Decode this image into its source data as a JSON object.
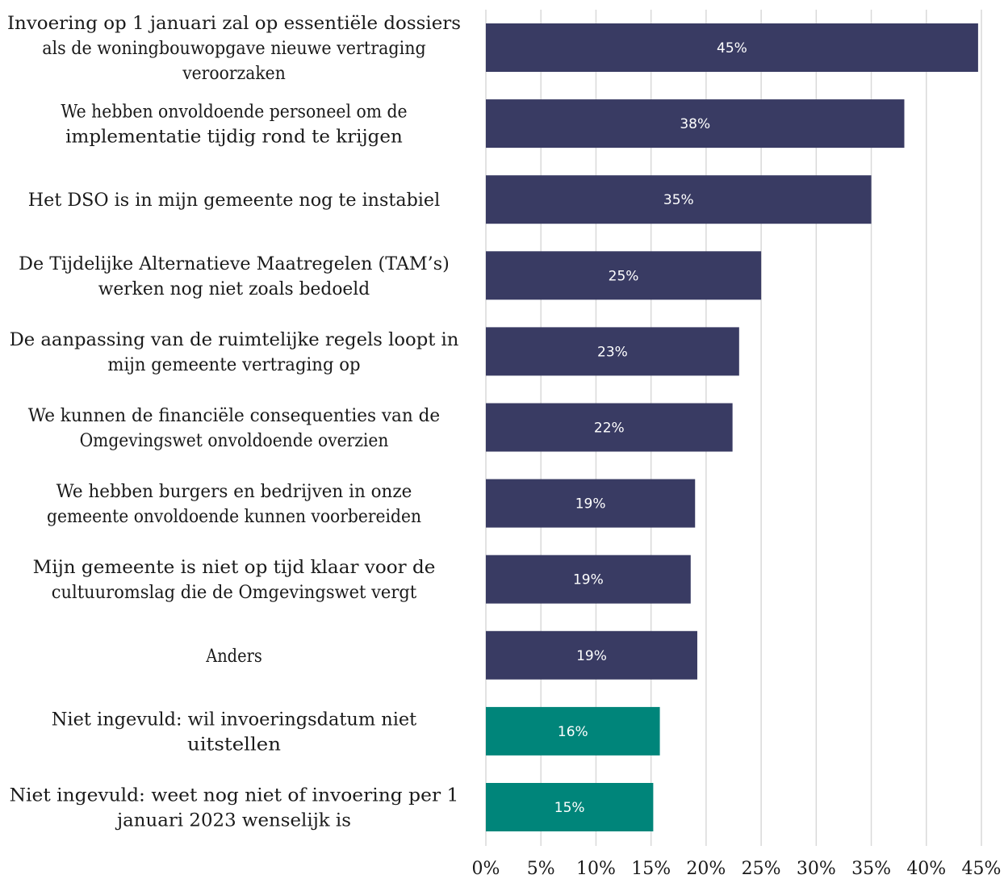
{
  "chart_data": {
    "type": "bar",
    "orientation": "horizontal",
    "categories": [
      [
        "Invoering op 1 januari zal op essentiële dossiers",
        "als de woningbouwopgave nieuwe vertraging",
        "veroorzaken"
      ],
      [
        "We hebben onvoldoende personeel om de",
        "implementatie tijdig rond te krijgen"
      ],
      [
        "Het DSO is in mijn gemeente nog te instabiel"
      ],
      [
        "De Tijdelijke Alternatieve Maatregelen (TAM’s)",
        "werken nog niet zoals bedoeld"
      ],
      [
        "De aanpassing van de ruimtelijke regels loopt in",
        "mijn gemeente vertraging op"
      ],
      [
        "We kunnen de financiële consequenties van de",
        "Omgevingswet onvoldoende overzien"
      ],
      [
        "We hebben burgers en bedrijven in onze",
        "gemeente onvoldoende kunnen voorbereiden"
      ],
      [
        "Mijn gemeente is niet op tijd klaar voor de",
        "cultuuromslag die de Omgevingswet vergt"
      ],
      [
        "Anders"
      ],
      [
        "Niet ingevuld: wil invoeringsdatum niet",
        "uitstellen"
      ],
      [
        "Niet ingevuld: weet nog niet of  invoering per 1",
        "januari 2023 wenselijk is"
      ]
    ],
    "values": [
      44.7,
      38,
      35,
      25,
      23,
      22.4,
      19,
      18.6,
      19.2,
      15.8,
      15.2
    ],
    "value_labels": [
      "45%",
      "38%",
      "35%",
      "25%",
      "23%",
      "22%",
      "19%",
      "19%",
      "19%",
      "16%",
      "15%"
    ],
    "colors": [
      "#393b63",
      "#393b63",
      "#393b63",
      "#393b63",
      "#393b63",
      "#393b63",
      "#393b63",
      "#393b63",
      "#393b63",
      "#00857a",
      "#00857a"
    ],
    "xlim": [
      0,
      45
    ],
    "xticks": [
      0,
      5,
      10,
      15,
      20,
      25,
      30,
      35,
      40,
      45
    ],
    "xtick_labels": [
      "0%",
      "5%",
      "10%",
      "15%",
      "20%",
      "25%",
      "30%",
      "35%",
      "40%",
      "45%"
    ],
    "grid": true,
    "legend": "none"
  }
}
